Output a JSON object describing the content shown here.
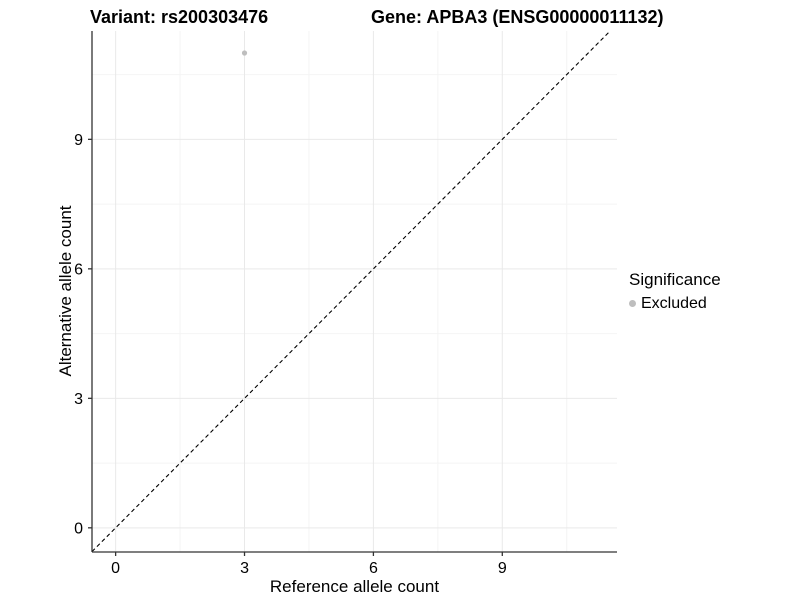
{
  "chart_data": {
    "type": "scatter",
    "titles": [
      "Variant: rs200303476",
      "Gene: APBA3 (ENSG00000011132)"
    ],
    "xlabel": "Reference allele count",
    "ylabel": "Alternative allele count",
    "xlim": [
      -0.55,
      11.67
    ],
    "ylim": [
      -0.56,
      11.51
    ],
    "x_ticks": [
      0,
      3,
      6,
      9
    ],
    "y_ticks": [
      0,
      3,
      6,
      9
    ],
    "x_minor_ticks": [
      1.5,
      4.5,
      7.5,
      10.5
    ],
    "y_minor_ticks": [
      1.5,
      4.5,
      7.5,
      10.5
    ],
    "points": [
      {
        "x": 3,
        "y": 11,
        "significance": "Excluded",
        "color": "#BEBEBE"
      }
    ],
    "reference_line": {
      "type": "identity-diagonal",
      "style": "dashed",
      "color": "#000000"
    },
    "grid": true,
    "legend_position": "right",
    "legend": {
      "title": "Significance",
      "entries": [
        {
          "label": "Excluded",
          "color": "#BEBEBE"
        }
      ]
    },
    "colors": {
      "background": "#FFFFFF",
      "grid_major": "#E9E9E9",
      "grid_minor": "#F4F4F4",
      "axis": "#333333",
      "tick_label": "#000000",
      "point_excluded": "#BEBEBE"
    }
  }
}
